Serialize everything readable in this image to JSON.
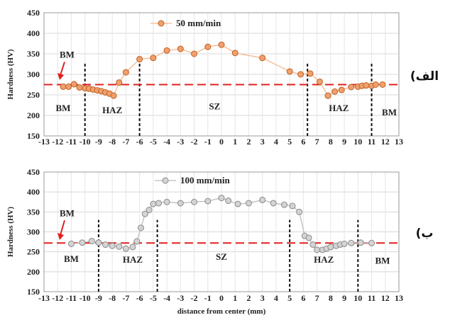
{
  "chart_data": [
    {
      "type": "line",
      "panel_label": "الف)",
      "legend": "50 mm/min",
      "ylabel": "Hardness (HV)",
      "xlabel": "",
      "xlim": [
        -13,
        13
      ],
      "ylim": [
        150,
        450
      ],
      "xticks": [
        -13,
        -12,
        -11,
        -10,
        -9,
        -8,
        -7,
        -6,
        -5,
        -4,
        -3,
        -2,
        -1,
        0,
        1,
        2,
        3,
        4,
        5,
        6,
        7,
        8,
        9,
        10,
        11,
        12,
        13
      ],
      "yticks": [
        150,
        200,
        250,
        300,
        350,
        400,
        450
      ],
      "reference_line": 275,
      "reference_label": "BM",
      "zone_boundaries": [
        -10,
        -6,
        6.3,
        11
      ],
      "zones": [
        {
          "label": "BM",
          "x": -11.6,
          "y": 210
        },
        {
          "label": "HAZ",
          "x": -8,
          "y": 205
        },
        {
          "label": "SZ",
          "x": -0.5,
          "y": 215
        },
        {
          "label": "HAZ",
          "x": 8.6,
          "y": 210
        },
        {
          "label": "BM",
          "x": 12.3,
          "y": 200
        }
      ],
      "marker_color": "#f0a06e",
      "marker_stroke": "#c06020",
      "line_color": "#f5b88c",
      "series": [
        {
          "name": "50 mm/min",
          "x": [
            -11.6,
            -11.2,
            -10.8,
            -10.4,
            -10,
            -9.7,
            -9.4,
            -9.1,
            -8.8,
            -8.5,
            -8.2,
            -7.9,
            -7.5,
            -7,
            -6,
            -5,
            -4,
            -3,
            -2,
            -1,
            0,
            1,
            3,
            5,
            5.8,
            6.5,
            7.2,
            7.8,
            8.3,
            8.8,
            9.5,
            10,
            10.3,
            10.6,
            11,
            11.3,
            11.8
          ],
          "y": [
            270,
            270,
            276,
            268,
            266,
            265,
            263,
            261,
            259,
            256,
            253,
            248,
            280,
            305,
            337,
            340,
            358,
            362,
            350,
            367,
            372,
            352,
            340,
            307,
            300,
            302,
            282,
            248,
            258,
            262,
            269,
            270,
            272,
            273,
            272,
            275,
            275
          ]
        }
      ]
    },
    {
      "type": "line",
      "panel_label": "ب)",
      "legend": "100 mm/min",
      "ylabel": "Hardness (HV)",
      "xlabel": "distance from center (mm)",
      "xlim": [
        -13,
        13
      ],
      "ylim": [
        150,
        450
      ],
      "xticks": [
        -13,
        -12,
        -11,
        -10,
        -9,
        -8,
        -7,
        -6,
        -5,
        -4,
        -3,
        -2,
        -1,
        0,
        1,
        2,
        3,
        4,
        5,
        6,
        7,
        8,
        9,
        10,
        11,
        12,
        13
      ],
      "yticks": [
        150,
        200,
        250,
        300,
        350,
        400,
        450
      ],
      "reference_line": 272,
      "reference_label": "BM",
      "zone_boundaries": [
        -9,
        -4.7,
        5,
        10
      ],
      "zones": [
        {
          "label": "BM",
          "x": -11,
          "y": 225
        },
        {
          "label": "HAZ",
          "x": -6.5,
          "y": 223
        },
        {
          "label": "SZ",
          "x": 0,
          "y": 230
        },
        {
          "label": "HAZ",
          "x": 7.5,
          "y": 223
        },
        {
          "label": "BM",
          "x": 11.8,
          "y": 220
        }
      ],
      "marker_color": "#d4d4d4",
      "marker_stroke": "#8a8a8a",
      "line_color": "#bdbdbd",
      "series": [
        {
          "name": "100 mm/min",
          "x": [
            -11,
            -10.2,
            -9.5,
            -9,
            -8.5,
            -8,
            -7.5,
            -7,
            -6.5,
            -6.2,
            -5.9,
            -5.6,
            -5.3,
            -5,
            -4.6,
            -4,
            -3,
            -2,
            -1,
            0,
            0.5,
            1.2,
            2,
            3,
            3.8,
            4.6,
            5.2,
            5.7,
            6.1,
            6.4,
            6.7,
            7,
            7.4,
            7.7,
            8,
            8.4,
            8.7,
            9,
            9.5,
            10.2,
            11
          ],
          "y": [
            270,
            273,
            277,
            273,
            268,
            265,
            263,
            258,
            262,
            276,
            310,
            345,
            355,
            370,
            372,
            375,
            372,
            375,
            377,
            385,
            378,
            370,
            372,
            380,
            372,
            368,
            365,
            350,
            290,
            285,
            268,
            255,
            255,
            258,
            262,
            265,
            268,
            270,
            272,
            273,
            272
          ]
        }
      ]
    }
  ]
}
